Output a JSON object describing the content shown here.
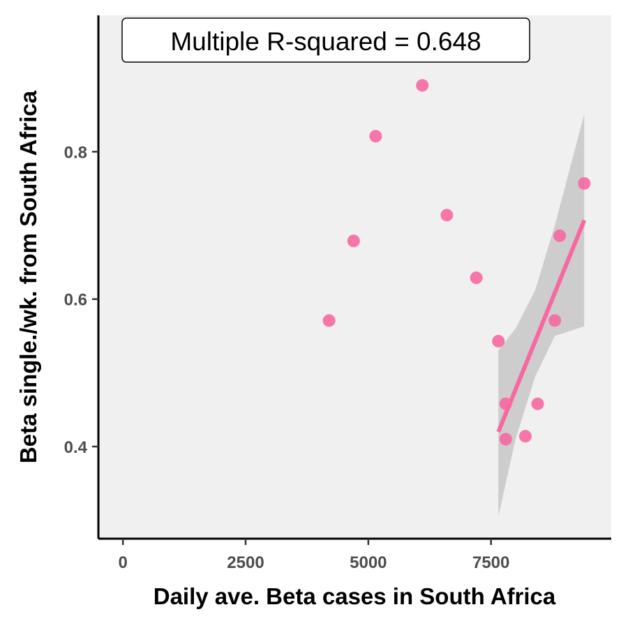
{
  "chart_data": {
    "type": "scatter",
    "title": "",
    "xlabel": "Daily ave. Beta cases in South Africa",
    "ylabel": "Beta single./wk. from South Africa",
    "xlim": [
      -500,
      9950
    ],
    "ylim": [
      0.275,
      0.985
    ],
    "x_ticks": [
      0,
      2500,
      5000,
      7500
    ],
    "x_tick_labels": [
      "0",
      "2500",
      "5000",
      "7500"
    ],
    "y_ticks": [
      0.4,
      0.6,
      0.8
    ],
    "y_tick_labels": [
      "0.4",
      "0.6",
      "0.8"
    ],
    "grid": false,
    "annotation": "Multiple R-squared = 0.648",
    "colors": {
      "point": "#f768a1",
      "fit_line": "#f768a1",
      "confidence_band": "#bdbdbd",
      "panel_background": "#f0f0f0",
      "axis": "#000000"
    },
    "points": [
      {
        "x": 4200,
        "y": 0.571
      },
      {
        "x": 4700,
        "y": 0.679
      },
      {
        "x": 5150,
        "y": 0.821
      },
      {
        "x": 6100,
        "y": 0.89
      },
      {
        "x": 6600,
        "y": 0.714
      },
      {
        "x": 7200,
        "y": 0.629
      },
      {
        "x": 7650,
        "y": 0.543
      },
      {
        "x": 7800,
        "y": 0.458
      },
      {
        "x": 7800,
        "y": 0.41
      },
      {
        "x": 8200,
        "y": 0.414
      },
      {
        "x": 8450,
        "y": 0.458
      },
      {
        "x": 8800,
        "y": 0.571
      },
      {
        "x": 8900,
        "y": 0.686
      },
      {
        "x": 9400,
        "y": 0.757
      }
    ],
    "fit_line": {
      "x": [
        7650,
        9400
      ],
      "y": [
        0.42,
        0.707
      ]
    },
    "confidence_band": [
      {
        "x": 7650,
        "lower": 0.305,
        "upper": 0.53
      },
      {
        "x": 8000,
        "lower": 0.41,
        "upper": 0.56
      },
      {
        "x": 8400,
        "lower": 0.495,
        "upper": 0.612
      },
      {
        "x": 8800,
        "lower": 0.55,
        "upper": 0.7
      },
      {
        "x": 9400,
        "lower": 0.563,
        "upper": 0.851
      }
    ]
  }
}
